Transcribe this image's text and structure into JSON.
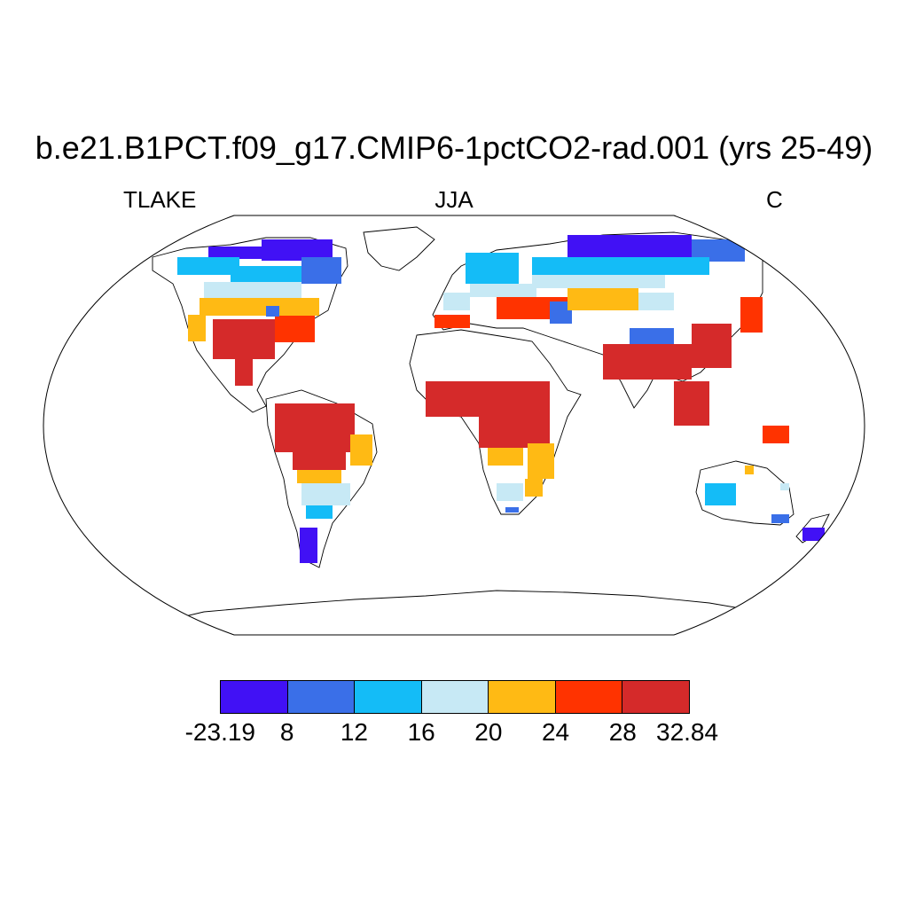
{
  "title": "b.e21.B1PCT.f09_g17.CMIP6-1pctCO2-rad.001 (yrs 25-49)",
  "left_label": "TLAKE",
  "center_label": "JJA",
  "right_label": "C",
  "colorbar": {
    "colors": [
      "#4111f5",
      "#3a6fe8",
      "#14bcf7",
      "#c7e9f5",
      "#ffba14",
      "#ff3300",
      "#d52a2a"
    ],
    "labels": [
      "-23.19",
      "8",
      "12",
      "16",
      "20",
      "24",
      "28",
      "32.84"
    ]
  },
  "map_outline_color": "#000000"
}
